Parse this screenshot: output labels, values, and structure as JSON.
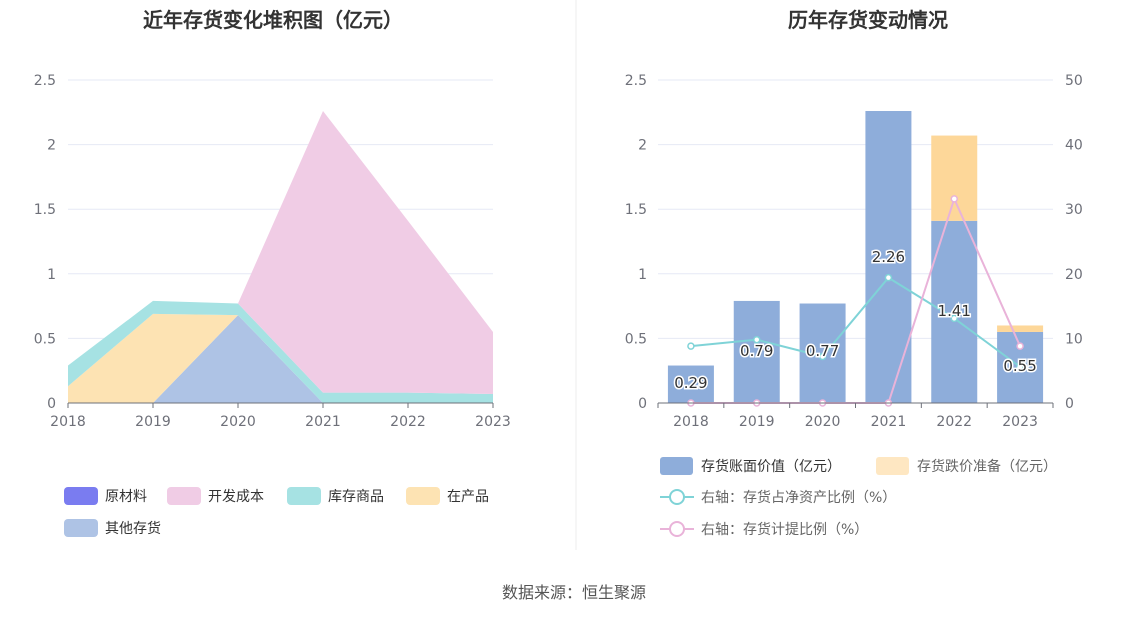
{
  "source_text": "数据来源：恒生聚源",
  "colors": {
    "raw_material": "#7a7cf0",
    "dev_cost": "#f0cce5",
    "stock_goods": "#a6e2e3",
    "wip": "#fde3b3",
    "other": "#aec3e5",
    "bar_book": "#8eadda",
    "bar_reserve": "#fdd799",
    "line_ratio_asset": "#7fd3d7",
    "line_ratio_reserve": "#e9b3d9"
  },
  "chart_data": [
    {
      "type": "area",
      "stacked": true,
      "title": "近年存货变化堆积图（亿元）",
      "categories": [
        "2018",
        "2019",
        "2020",
        "2021",
        "2022",
        "2023"
      ],
      "ylim": [
        0,
        2.5
      ],
      "yticks": [
        "0",
        "0.5",
        "1",
        "1.5",
        "2",
        "2.5"
      ],
      "grid": true,
      "legend_position": "bottom-left",
      "series": [
        {
          "name": "其他存货",
          "values": [
            0,
            0,
            0.68,
            0,
            0,
            0
          ]
        },
        {
          "name": "在产品",
          "values": [
            0.13,
            0.69,
            0,
            0,
            0,
            0
          ]
        },
        {
          "name": "库存商品",
          "values": [
            0.16,
            0.1,
            0.09,
            0.08,
            0.08,
            0.07
          ]
        },
        {
          "name": "开发成本",
          "values": [
            0,
            0,
            0,
            2.18,
            1.33,
            0.48
          ]
        },
        {
          "name": "原材料",
          "values": [
            0,
            0,
            0,
            0,
            0,
            0
          ]
        }
      ],
      "legend": [
        "原材料",
        "开发成本",
        "库存商品",
        "在产品",
        "其他存货"
      ]
    },
    {
      "type": "bar",
      "stacked": true,
      "title": "历年存货变动情况",
      "categories": [
        "2018",
        "2019",
        "2020",
        "2021",
        "2022",
        "2023"
      ],
      "ylim": [
        0,
        2.5
      ],
      "yticks": [
        "0",
        "0.5",
        "1",
        "1.5",
        "2",
        "2.5"
      ],
      "y2lim": [
        0,
        50
      ],
      "y2ticks": [
        "0",
        "10",
        "20",
        "30",
        "40",
        "50"
      ],
      "grid": true,
      "legend_position": "bottom",
      "series": [
        {
          "name": "存货账面价值（亿元）",
          "values": [
            0.29,
            0.79,
            0.77,
            2.26,
            1.41,
            0.55
          ],
          "labels": [
            "0.29",
            "0.79",
            "0.77",
            "2.26",
            "1.41",
            "0.55"
          ]
        },
        {
          "name": "存货跌价准备（亿元）",
          "values": [
            0,
            0,
            0,
            0,
            0.66,
            0.05
          ]
        }
      ],
      "line_series": [
        {
          "name": "右轴：存货占净资产比例（%）",
          "values": [
            8.8,
            9.8,
            7.2,
            19.4,
            13.1,
            5.6
          ]
        },
        {
          "name": "右轴：存货计提比例（%）",
          "values": [
            0,
            0,
            0,
            0,
            31.6,
            8.8
          ]
        }
      ]
    }
  ]
}
